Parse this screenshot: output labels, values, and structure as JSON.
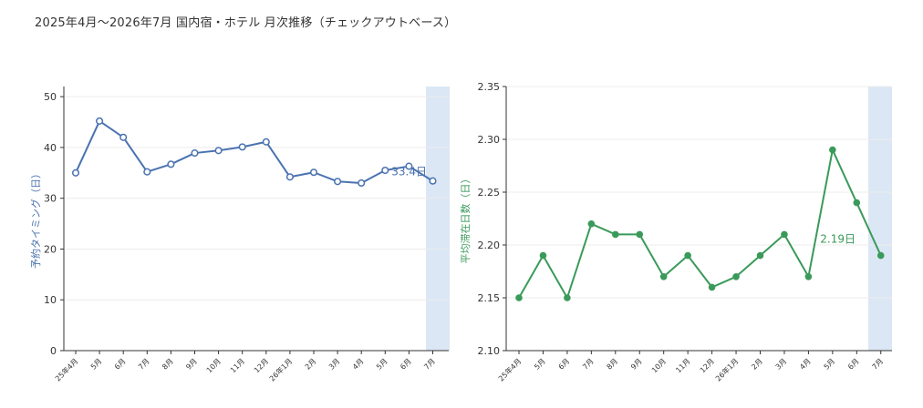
{
  "title": "2025年4月～2026年7月 国内宿・ホテル 月次推移（チェックアウトベース）",
  "chart_data": [
    {
      "type": "line",
      "categories": [
        "25年4月",
        "5月",
        "6月",
        "7月",
        "8月",
        "9月",
        "10月",
        "11月",
        "12月",
        "26年1月",
        "2月",
        "3月",
        "4月",
        "5月",
        "6月",
        "7月"
      ],
      "series": [
        {
          "values": [
            35.0,
            45.2,
            42.0,
            35.2,
            36.7,
            38.9,
            39.4,
            40.1,
            41.1,
            34.2,
            35.1,
            33.3,
            33.0,
            35.5,
            36.3,
            33.4
          ]
        }
      ],
      "ylabel": "予約タイミング（日）",
      "ylim": [
        0,
        52
      ],
      "yticks": [
        0,
        10,
        20,
        30,
        40,
        50
      ],
      "y_tick_labels": [
        "0",
        "10",
        "20",
        "30",
        "40",
        "50"
      ],
      "last_label": "33.4日",
      "highlight_category": "7月",
      "color": "#4a72b0",
      "marker": "open-circle"
    },
    {
      "type": "line",
      "categories": [
        "25年4月",
        "5月",
        "6月",
        "7月",
        "8月",
        "9月",
        "10月",
        "11月",
        "12月",
        "26年1月",
        "2月",
        "3月",
        "4月",
        "5月",
        "6月",
        "7月"
      ],
      "series": [
        {
          "values": [
            2.15,
            2.19,
            2.15,
            2.22,
            2.21,
            2.21,
            2.17,
            2.19,
            2.16,
            2.17,
            2.19,
            2.21,
            2.17,
            2.29,
            2.24,
            2.19
          ]
        }
      ],
      "ylabel": "平均滞在日数（日）",
      "ylim": [
        2.1,
        2.35
      ],
      "yticks": [
        2.1,
        2.15,
        2.2,
        2.25,
        2.3,
        2.35
      ],
      "y_tick_labels": [
        "2.10",
        "2.15",
        "2.20",
        "2.25",
        "2.30",
        "2.35"
      ],
      "last_label": "2.19日",
      "highlight_category": "7月",
      "color": "#3a9a5a",
      "marker": "filled-circle"
    }
  ]
}
